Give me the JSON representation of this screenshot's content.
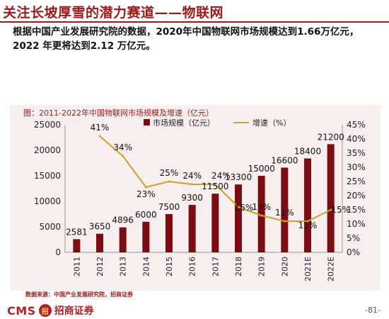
{
  "page": {
    "title": "关注长坡厚雪的潜力赛道——物联网",
    "headline": "根据中国产业发展研究院的数据，2020年中国物联网市场规模达到1.66万亿元，2022 年更将达到2.12 万亿元。",
    "source": "数据来源：中国产业发展研究院，招商证券",
    "logo": {
      "brand": "CMS",
      "emblem": "招",
      "name": "招商证券"
    },
    "page_number": "-81-"
  },
  "chart_data": {
    "type": "bar",
    "title": "图：2011-2022年中国物联网市场规模及增速（亿元）",
    "categories": [
      "2011",
      "2012",
      "2013",
      "2014",
      "2015",
      "2016",
      "2017",
      "2018",
      "2019",
      "2020",
      "2021E",
      "2022E"
    ],
    "series": [
      {
        "name": "市场规模（亿元）",
        "type": "bar",
        "axis": "left",
        "color": "#7a0c12",
        "values": [
          2581,
          3650,
          4896,
          6000,
          7500,
          9300,
          11500,
          13300,
          15000,
          16600,
          18400,
          21200
        ],
        "labels": [
          "2581",
          "3650",
          "4896",
          "6000",
          "7500",
          "9300",
          "11500",
          "13300",
          "15000",
          "16600",
          "18400",
          "21200"
        ]
      },
      {
        "name": "增速（%）",
        "type": "line",
        "axis": "right",
        "color": "#c9a227",
        "values": [
          null,
          41,
          34,
          23,
          25,
          24,
          24,
          16,
          13,
          11,
          11,
          15
        ],
        "labels": [
          "",
          "41%",
          "34%",
          "23%",
          "25%",
          "24%",
          "24%",
          "16%",
          "13%",
          "11%",
          "11%",
          "15%"
        ]
      }
    ],
    "y_left": {
      "min": 0,
      "max": 25000,
      "ticks": [
        "0",
        "5000",
        "10000",
        "15000",
        "20000",
        "25000"
      ]
    },
    "y_right": {
      "min": 0,
      "max": 45,
      "ticks": [
        "0%",
        "5%",
        "10%",
        "15%",
        "20%",
        "25%",
        "30%",
        "35%",
        "40%",
        "45%"
      ]
    },
    "grid": false,
    "legend": "top"
  }
}
